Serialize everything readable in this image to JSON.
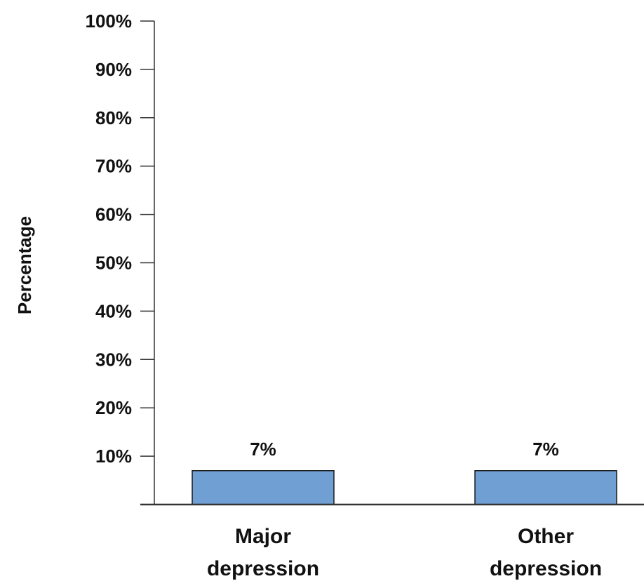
{
  "chart_data": {
    "type": "bar",
    "title": "",
    "xlabel": "",
    "ylabel": "Percentage",
    "categories": [
      "Major depression",
      "Other depression"
    ],
    "category_lines": [
      [
        "Major",
        "depression"
      ],
      [
        "Other",
        "depression"
      ]
    ],
    "values": [
      7,
      7
    ],
    "data_labels": [
      "7%",
      "7%"
    ],
    "ylim": [
      0,
      100
    ],
    "yticks": [
      10,
      20,
      30,
      40,
      50,
      60,
      70,
      80,
      90,
      100
    ],
    "ytick_labels": [
      "10%",
      "20%",
      "30%",
      "40%",
      "50%",
      "60%",
      "70%",
      "80%",
      "90%",
      "100%"
    ],
    "grid": false,
    "legend": "none",
    "colors": {
      "bar_fill": "#6f9fd3",
      "bar_stroke": "#1a1a1a",
      "axis": "#333333",
      "text": "#111111"
    }
  }
}
